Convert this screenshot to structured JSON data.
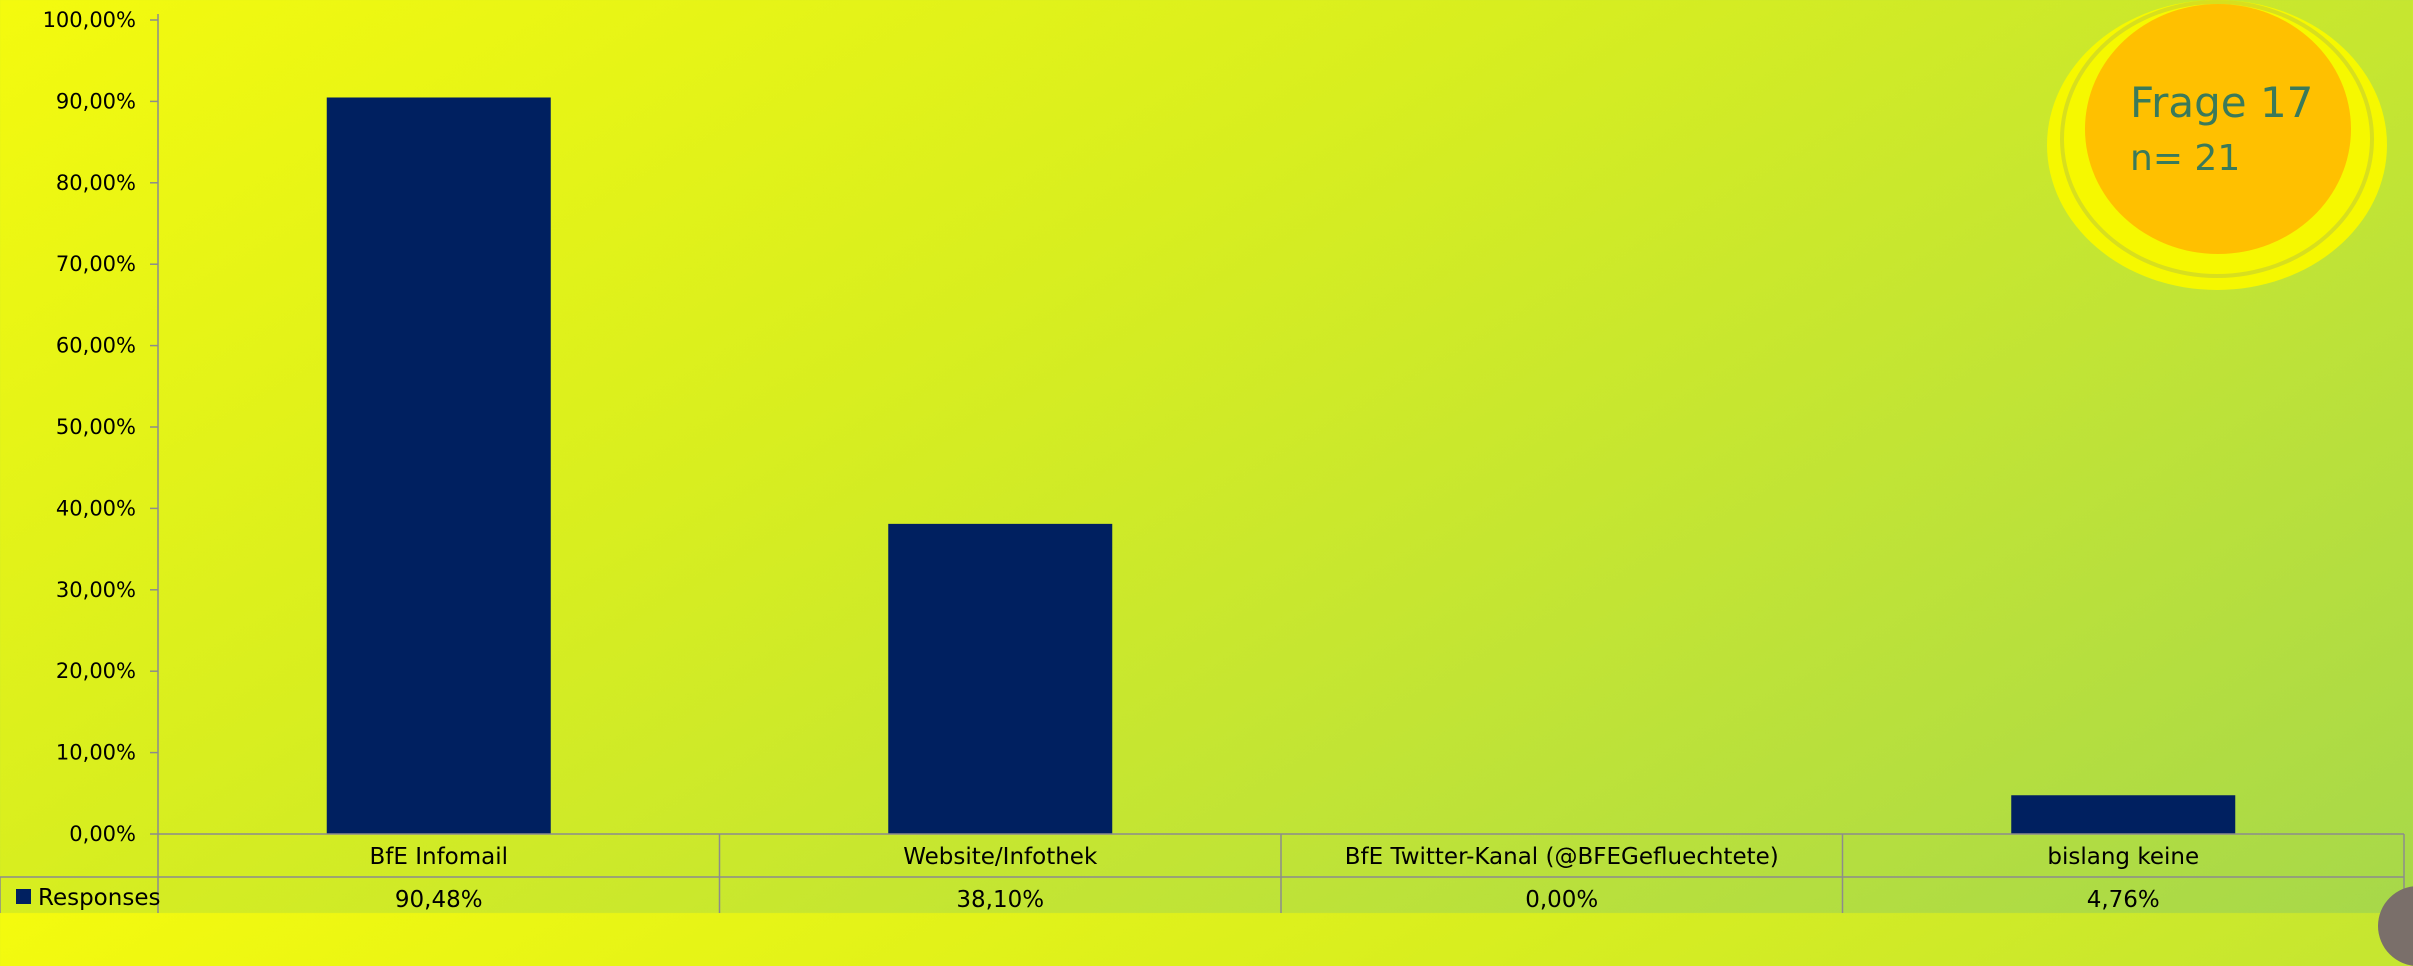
{
  "badge": {
    "title": "Frage 17",
    "subtitle": "n= 21"
  },
  "colors": {
    "bar": "#002060",
    "axis": "#8c8c8c",
    "badge_fill": "#ffc000",
    "badge_ring": "#f6f800"
  },
  "chart_data": {
    "type": "bar",
    "categories": [
      "BfE Infomail",
      "Website/Infothek",
      "BfE Twitter-Kanal (@BFEGefluechtete)",
      "bislang keine"
    ],
    "series": [
      {
        "name": "Responses",
        "values": [
          90.48,
          38.1,
          0.0,
          4.76
        ]
      }
    ],
    "data_table": [
      "90,48%",
      "38,10%",
      "0,00%",
      "4,76%"
    ],
    "y_ticks": [
      "0,00%",
      "10,00%",
      "20,00%",
      "30,00%",
      "40,00%",
      "50,00%",
      "60,00%",
      "70,00%",
      "80,00%",
      "90,00%",
      "100,00%"
    ],
    "ylim": [
      0,
      100
    ],
    "title": "",
    "xlabel": "",
    "ylabel": "",
    "grid": false,
    "legend": "data-table"
  }
}
